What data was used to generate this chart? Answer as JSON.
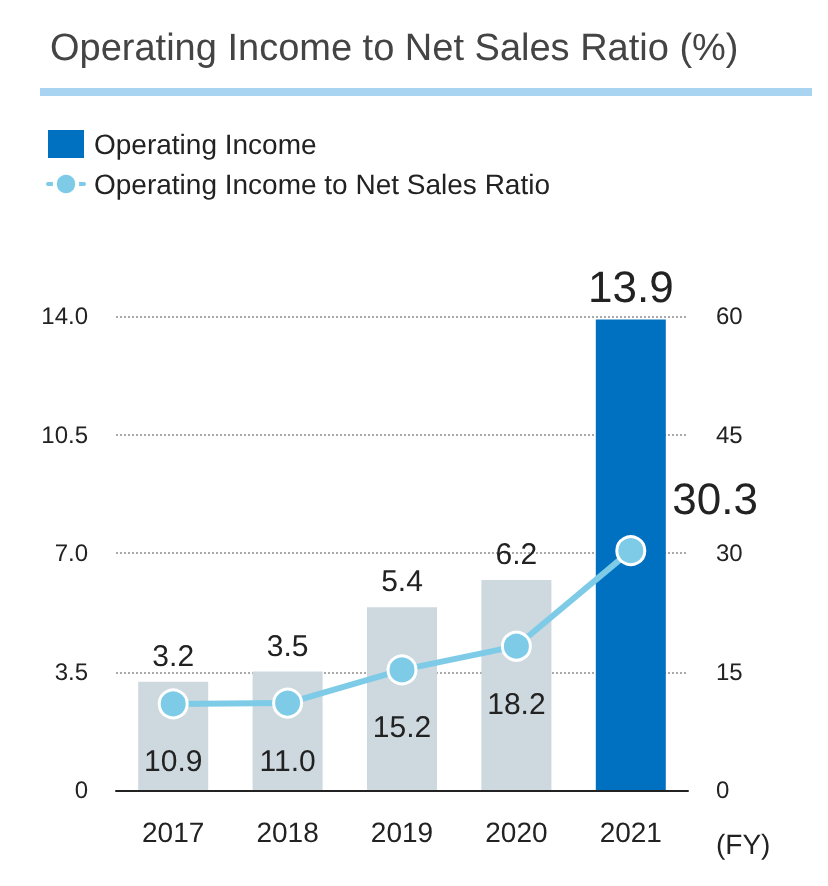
{
  "chart_data": {
    "type": "bar",
    "title": "Operating Income to Net Sales Ratio (%)",
    "xlabel": "(FY)",
    "categories": [
      "2017",
      "2018",
      "2019",
      "2020",
      "2021"
    ],
    "series": [
      {
        "name": "Operating Income",
        "color": "#0070c0",
        "colors": [
          "#cdd8df",
          "#cdd8df",
          "#cdd8df",
          "#cdd8df",
          "#0070c0"
        ],
        "values": [
          3.2,
          3.5,
          5.4,
          6.2,
          13.9
        ],
        "value_labels": [
          "3.2",
          "3.5",
          "5.4",
          "6.2",
          "13.9"
        ]
      },
      {
        "name": "Operating Income to Net Sales Ratio",
        "type": "line",
        "axis": "y2",
        "color": "#7ecbe8",
        "values": [
          10.9,
          11.0,
          15.2,
          18.2,
          30.3
        ],
        "value_labels": [
          "10.9",
          "11.0",
          "15.2",
          "18.2",
          "30.3"
        ]
      }
    ],
    "ylim": [
      0,
      14
    ],
    "yticks": [
      0,
      3.5,
      {
        "value": 7,
        "label": "7.0"
      },
      10.5,
      {
        "value": 14,
        "label": "14.0"
      }
    ],
    "y2lim": [
      0,
      60
    ],
    "y2ticks": [
      0,
      15,
      30,
      45,
      60
    ],
    "grid": "y",
    "legend": "top left",
    "marker": "circle"
  }
}
